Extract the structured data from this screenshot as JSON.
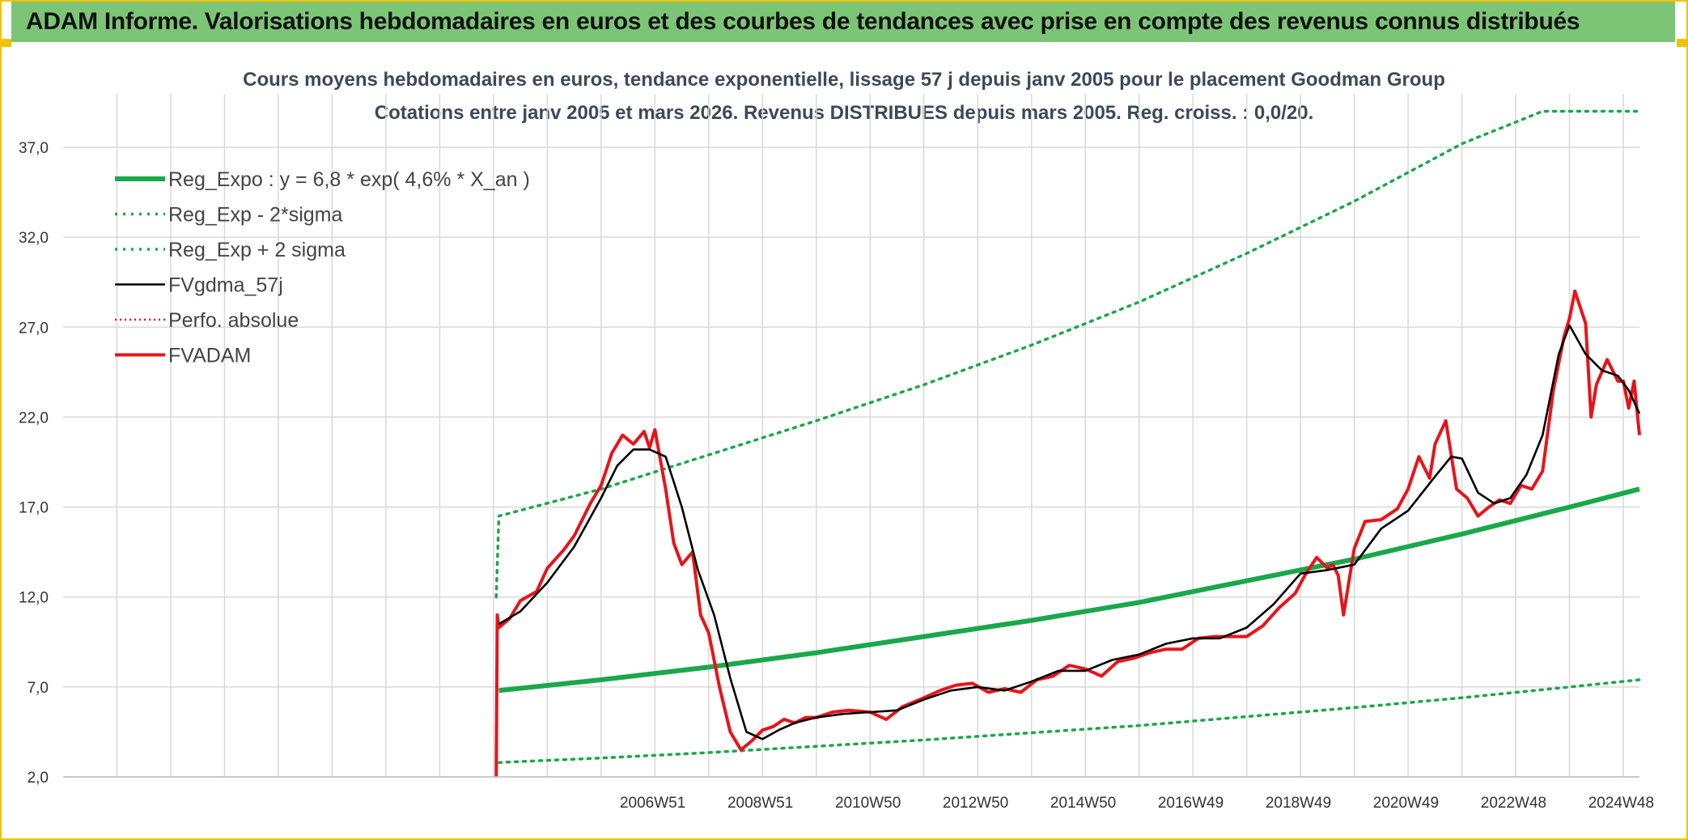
{
  "banner": {
    "title": "ADAM Informe. Valorisations hebdomadaires en euros et des courbes de tendances avec prise en compte des revenus connus distribués"
  },
  "colors": {
    "banner_bg": "#7cc576",
    "frame": "#f2c200",
    "trend": "#1aa84a",
    "band": "#1aa84a",
    "smoothed": "#000000",
    "price": "#e8141b",
    "perfo": "#e8141b",
    "grid": "#d9d9d9"
  },
  "chart_data": {
    "type": "line",
    "title": "Cours moyens hebdomadaires en euros, tendance exponentielle, lissage 57 j depuis janv 2005 pour le placement Goodman Group",
    "subtitle": "Cotations entre janv 2005 et mars 2026. Revenus DISTRIBUES depuis mars 2005. Reg. croiss. : 0,0/20.",
    "y_ticks": [
      "2,0",
      "7,0",
      "12,0",
      "17,0",
      "22,0",
      "27,0",
      "32,0",
      "37,0"
    ],
    "y_tick_values": [
      2,
      7,
      12,
      17,
      22,
      27,
      32,
      37
    ],
    "ylim": [
      2,
      37
    ],
    "x_tick_labels": [
      "2006W51",
      "2008W51",
      "2010W50",
      "2012W50",
      "2014W50",
      "2016W49",
      "2018W49",
      "2020W49",
      "2022W48",
      "2024W48"
    ],
    "x_tick_positions": [
      2006.96,
      2008.96,
      2010.96,
      2012.96,
      2014.96,
      2016.96,
      2018.96,
      2020.96,
      2022.96,
      2024.96
    ],
    "x_gridlines": [
      1997,
      1998,
      1999,
      2000,
      2001,
      2002,
      2003,
      2004,
      2005,
      2006,
      2007,
      2008,
      2009,
      2010,
      2011,
      2012,
      2013,
      2014,
      2015,
      2016,
      2017,
      2018,
      2019,
      2020,
      2021,
      2022,
      2023,
      2024,
      2025,
      2026
    ],
    "xlim": [
      1996.0,
      2025.3
    ],
    "legend_position": "top-left",
    "grid": true,
    "series": [
      {
        "name": "Reg_Expo : y = 6,8 * exp( 4,6% *  X_an )",
        "style": "solid-thick",
        "color": "#1aa84a",
        "x": [
          2004.1,
          2006,
          2008,
          2010,
          2012,
          2014,
          2016,
          2018,
          2020,
          2022,
          2024,
          2025.3
        ],
        "y": [
          6.8,
          7.4,
          8.1,
          8.9,
          9.8,
          10.7,
          11.7,
          12.9,
          14.1,
          15.5,
          17.0,
          18.0
        ]
      },
      {
        "name": "Reg_Exp - 2*sigma",
        "style": "dotted",
        "color": "#1aa84a",
        "x": [
          2004.1,
          2006,
          2008,
          2010,
          2012,
          2014,
          2016,
          2018,
          2020,
          2022,
          2024,
          2025.3
        ],
        "y": [
          2.8,
          3.05,
          3.35,
          3.7,
          4.05,
          4.45,
          4.85,
          5.35,
          5.85,
          6.4,
          7.0,
          7.4
        ]
      },
      {
        "name": "Reg_Exp + 2 sigma",
        "style": "dotted",
        "color": "#1aa84a",
        "x": [
          2004.05,
          2004.1,
          2006,
          2008,
          2010,
          2012,
          2014,
          2016,
          2018,
          2020,
          2022,
          2023.5,
          2025.3
        ],
        "y": [
          12.0,
          16.5,
          18.0,
          19.9,
          21.8,
          23.8,
          26.0,
          28.4,
          31.1,
          34.0,
          37.2,
          39.0,
          39.0
        ]
      },
      {
        "name": "FVgdma_57j",
        "style": "solid",
        "color": "#000000",
        "x": [
          2004.1,
          2004.5,
          2005,
          2005.5,
          2006,
          2006.3,
          2006.6,
          2006.9,
          2007.2,
          2007.5,
          2007.8,
          2008.1,
          2008.4,
          2008.7,
          2009.0,
          2009.3,
          2009.6,
          2010,
          2010.5,
          2011,
          2011.5,
          2012,
          2012.5,
          2013,
          2013.5,
          2014,
          2014.5,
          2015,
          2015.5,
          2016,
          2016.5,
          2017,
          2017.5,
          2018,
          2018.5,
          2019,
          2019.5,
          2020,
          2020.5,
          2021,
          2021.5,
          2021.8,
          2022,
          2022.3,
          2022.6,
          2022.9,
          2023.2,
          2023.5,
          2023.8,
          2024.0,
          2024.3,
          2024.6,
          2024.9,
          2025.1,
          2025.3
        ],
        "y": [
          10.5,
          11.2,
          12.8,
          14.8,
          17.5,
          19.3,
          20.2,
          20.2,
          19.8,
          17.0,
          13.5,
          11.0,
          7.5,
          4.5,
          4.1,
          4.6,
          5.0,
          5.3,
          5.5,
          5.6,
          5.7,
          6.3,
          6.8,
          7.0,
          6.8,
          7.3,
          7.9,
          7.9,
          8.5,
          8.8,
          9.4,
          9.7,
          9.7,
          10.3,
          11.6,
          13.3,
          13.5,
          13.8,
          15.8,
          16.8,
          18.7,
          19.8,
          19.7,
          17.8,
          17.2,
          17.5,
          18.8,
          21.0,
          25.5,
          27.1,
          25.5,
          24.6,
          24.3,
          23.5,
          22.2
        ]
      },
      {
        "name": "Perfo. absolue",
        "style": "dotted",
        "color": "#e8141b",
        "x": [],
        "y": []
      },
      {
        "name": "FVADAM",
        "style": "solid-thick",
        "color": "#e8141b",
        "x": [
          2004.05,
          2004.07,
          2004.1,
          2004.3,
          2004.5,
          2004.8,
          2005,
          2005.3,
          2005.5,
          2005.8,
          2006,
          2006.2,
          2006.4,
          2006.6,
          2006.8,
          2006.9,
          2007.0,
          2007.2,
          2007.35,
          2007.5,
          2007.7,
          2007.85,
          2008.0,
          2008.2,
          2008.4,
          2008.6,
          2008.8,
          2009.0,
          2009.2,
          2009.4,
          2009.6,
          2009.8,
          2010,
          2010.3,
          2010.6,
          2011,
          2011.3,
          2011.6,
          2012,
          2012.3,
          2012.6,
          2012.9,
          2013.2,
          2013.5,
          2013.8,
          2014.1,
          2014.4,
          2014.7,
          2015.0,
          2015.3,
          2015.6,
          2015.9,
          2016.2,
          2016.5,
          2016.8,
          2017.1,
          2017.4,
          2017.7,
          2018.0,
          2018.3,
          2018.6,
          2018.9,
          2019.1,
          2019.3,
          2019.5,
          2019.6,
          2019.7,
          2019.8,
          2020.0,
          2020.2,
          2020.5,
          2020.8,
          2021.0,
          2021.2,
          2021.4,
          2021.5,
          2021.7,
          2021.9,
          2022.1,
          2022.3,
          2022.5,
          2022.7,
          2022.9,
          2023.1,
          2023.3,
          2023.5,
          2023.7,
          2023.9,
          2024.0,
          2024.1,
          2024.3,
          2024.4,
          2024.5,
          2024.7,
          2024.9,
          2025.0,
          2025.1,
          2025.2,
          2025.3
        ],
        "y": [
          2.0,
          11.0,
          10.3,
          10.8,
          11.8,
          12.3,
          13.6,
          14.6,
          15.4,
          17.2,
          18.2,
          20.0,
          21.0,
          20.5,
          21.2,
          20.3,
          21.3,
          18.0,
          15.0,
          13.8,
          14.5,
          11.0,
          10.0,
          7.0,
          4.5,
          3.5,
          4.0,
          4.6,
          4.8,
          5.2,
          5.0,
          5.3,
          5.3,
          5.6,
          5.7,
          5.6,
          5.2,
          5.9,
          6.4,
          6.8,
          7.1,
          7.2,
          6.7,
          6.9,
          6.7,
          7.4,
          7.6,
          8.2,
          8.0,
          7.6,
          8.4,
          8.6,
          8.9,
          9.1,
          9.1,
          9.7,
          9.8,
          9.8,
          9.8,
          10.4,
          11.4,
          12.2,
          13.3,
          14.2,
          13.6,
          13.8,
          13.2,
          11.0,
          14.7,
          16.2,
          16.3,
          16.9,
          18.0,
          19.8,
          18.6,
          20.5,
          21.8,
          18.0,
          17.5,
          16.5,
          17.0,
          17.4,
          17.2,
          18.2,
          18.0,
          19.0,
          23.5,
          26.5,
          27.5,
          29.0,
          27.2,
          22.0,
          23.8,
          25.2,
          24.0,
          24.0,
          22.5,
          24.0,
          21.0
        ]
      }
    ]
  }
}
